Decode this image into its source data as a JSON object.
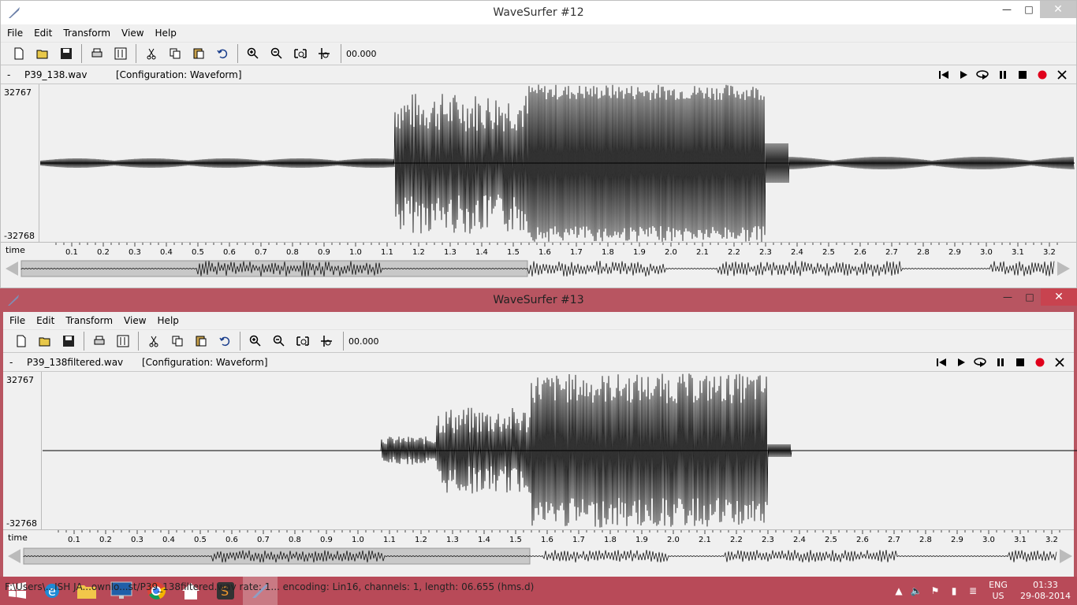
{
  "windows": [
    {
      "title": "WaveSurfer #12",
      "menu": [
        "File",
        "Edit",
        "Transform",
        "View",
        "Help"
      ],
      "time_value": "00.000",
      "filename": "P39_138.wav",
      "config": "[Configuration: Waveform]",
      "dash": "-",
      "ymax": "32767",
      "ymin": "-32768",
      "time_label": "time"
    },
    {
      "title": "WaveSurfer #13",
      "menu": [
        "File",
        "Edit",
        "Transform",
        "View",
        "Help"
      ],
      "time_value": "00.000",
      "filename": "P39_138filtered.wav",
      "config": "[Configuration: Waveform]",
      "dash": "-",
      "ymax": "32767",
      "ymin": "-32768",
      "time_label": "time"
    }
  ],
  "ticks": [
    "0.1",
    "0.2",
    "0.3",
    "0.4",
    "0.5",
    "0.6",
    "0.7",
    "0.8",
    "0.9",
    "1.0",
    "1.1",
    "1.2",
    "1.3",
    "1.4",
    "1.5",
    "1.6",
    "1.7",
    "1.8",
    "1.9",
    "2.0",
    "2.1",
    "2.2",
    "2.3",
    "2.4",
    "2.5",
    "2.6",
    "2.7",
    "2.8",
    "2.9",
    "3.0",
    "3.1",
    "3.2"
  ],
  "taskbar": {
    "status_text": "F:\\Users\\...ISH JA...ownlo...st/P39_138filtered.wav rate: 1... encoding: Lin16, channels: 1, length: 06.655 (hms.d)",
    "lang_top": "ENG",
    "lang_bottom": "US",
    "time": "01:33",
    "date": "29-08-2014"
  },
  "icons": [
    "new-file-icon",
    "open-folder-icon",
    "save-icon",
    "print-icon",
    "properties-icon",
    "cut-icon",
    "copy-icon",
    "paste-icon",
    "undo-icon",
    "zoom-in-icon",
    "zoom-out-icon",
    "zoom-fit-icon",
    "zoom-selection-icon"
  ],
  "colors": {
    "accent": "#b85561",
    "close_red": "#c8434f",
    "record": "#e0001b"
  }
}
